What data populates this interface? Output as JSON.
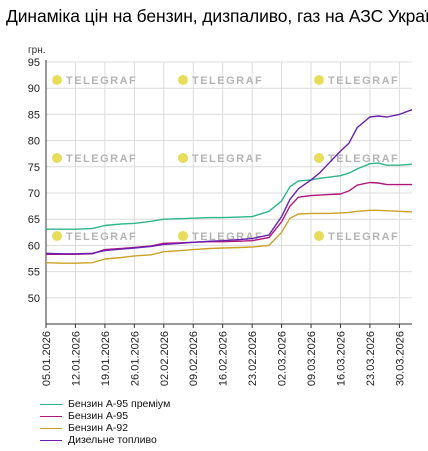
{
  "title": "Динаміка цін на бензин, дизпаливо, газ на АЗС України",
  "watermark": "TELEGRAF",
  "chart_data": {
    "type": "line",
    "ylabel": "грн.",
    "ylim": [
      45,
      95
    ],
    "yticks": [
      50,
      55,
      60,
      65,
      70,
      75,
      80,
      85,
      90,
      95
    ],
    "grid": true,
    "legend_position": "bottom-left",
    "x_tick_labels": [
      "05.01.2026",
      "12.01.2026",
      "19.01.2026",
      "26.01.2026",
      "02.02.2026",
      "09.02.2026",
      "16.02.2026",
      "23.02.2026",
      "02.03.2026",
      "09.03.2026",
      "16.03.2026",
      "23.03.2026",
      "30.03.2026"
    ],
    "x": [
      "05.01.2026",
      "09.01.2026",
      "12.01.2026",
      "16.01.2026",
      "19.01.2026",
      "23.01.2026",
      "26.01.2026",
      "30.01.2026",
      "02.02.2026",
      "06.02.2026",
      "09.02.2026",
      "13.02.2026",
      "16.02.2026",
      "20.02.2026",
      "23.02.2026",
      "27.02.2026",
      "02.03.2026",
      "04.03.2026",
      "06.03.2026",
      "09.03.2026",
      "11.03.2026",
      "13.03.2026",
      "16.03.2026",
      "18.03.2026",
      "20.03.2026",
      "23.03.2026",
      "25.03.2026",
      "27.03.2026",
      "30.03.2026",
      "02.04.2026"
    ],
    "series": [
      {
        "name": "Бензин А-95 преміум",
        "color": "#2bb58a",
        "values": [
          63.1,
          63.1,
          63.1,
          63.2,
          63.8,
          64.1,
          64.2,
          64.6,
          65.0,
          65.1,
          65.2,
          65.3,
          65.3,
          65.4,
          65.5,
          66.5,
          68.5,
          71.2,
          72.3,
          72.5,
          72.8,
          73.0,
          73.3,
          73.8,
          74.6,
          75.6,
          75.7,
          75.3,
          75.3,
          75.5
        ]
      },
      {
        "name": "Бензин А-95",
        "color": "#b0177a",
        "values": [
          58.3,
          58.3,
          58.3,
          58.4,
          59.2,
          59.4,
          59.6,
          59.9,
          60.4,
          60.5,
          60.6,
          60.7,
          60.7,
          60.8,
          60.9,
          61.5,
          64.5,
          67.5,
          69.2,
          69.5,
          69.6,
          69.7,
          69.8,
          70.4,
          71.5,
          72.0,
          71.9,
          71.6,
          71.6,
          71.6
        ]
      },
      {
        "name": "Бензин А-92",
        "color": "#c9a227",
        "values": [
          56.7,
          56.6,
          56.6,
          56.7,
          57.4,
          57.7,
          58.0,
          58.2,
          58.8,
          59.0,
          59.2,
          59.4,
          59.5,
          59.6,
          59.7,
          60.0,
          62.5,
          65.2,
          66.0,
          66.1,
          66.1,
          66.1,
          66.2,
          66.3,
          66.5,
          66.7,
          66.7,
          66.6,
          66.5,
          66.4
        ]
      },
      {
        "name": "Дизельне топливо",
        "color": "#6a1fb0",
        "values": [
          58.5,
          58.4,
          58.4,
          58.5,
          59.0,
          59.3,
          59.5,
          59.8,
          60.2,
          60.4,
          60.6,
          60.8,
          60.9,
          61.1,
          61.3,
          62.0,
          65.5,
          68.8,
          70.8,
          72.5,
          73.8,
          75.5,
          78.0,
          79.5,
          82.5,
          84.5,
          84.7,
          84.5,
          85.0,
          85.9
        ]
      }
    ]
  }
}
